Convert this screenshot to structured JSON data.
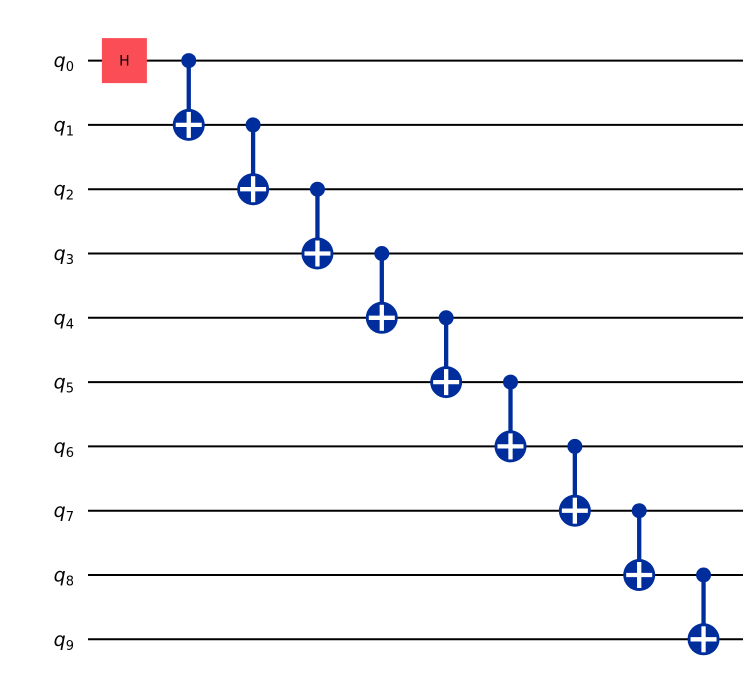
{
  "figure": {
    "kind": "quantum-circuit",
    "background": "#ffffff",
    "num_qubits": 10
  },
  "colors": {
    "wire": "#000000",
    "h_gate_fill": "#FA4D56",
    "h_gate_text": "#000000",
    "cx_gate_fill": "#002D9C",
    "cx_cross": "#ffffff"
  },
  "qubits": [
    {
      "base": "q",
      "sub": "0"
    },
    {
      "base": "q",
      "sub": "1"
    },
    {
      "base": "q",
      "sub": "2"
    },
    {
      "base": "q",
      "sub": "3"
    },
    {
      "base": "q",
      "sub": "4"
    },
    {
      "base": "q",
      "sub": "5"
    },
    {
      "base": "q",
      "sub": "6"
    },
    {
      "base": "q",
      "sub": "7"
    },
    {
      "base": "q",
      "sub": "8"
    },
    {
      "base": "q",
      "sub": "9"
    }
  ],
  "gates": [
    {
      "type": "h",
      "label": "H",
      "qubit": 0,
      "column": 0
    },
    {
      "type": "cx",
      "control": 0,
      "target": 1,
      "column": 1
    },
    {
      "type": "cx",
      "control": 1,
      "target": 2,
      "column": 2
    },
    {
      "type": "cx",
      "control": 2,
      "target": 3,
      "column": 3
    },
    {
      "type": "cx",
      "control": 3,
      "target": 4,
      "column": 4
    },
    {
      "type": "cx",
      "control": 4,
      "target": 5,
      "column": 5
    },
    {
      "type": "cx",
      "control": 5,
      "target": 6,
      "column": 6
    },
    {
      "type": "cx",
      "control": 6,
      "target": 7,
      "column": 7
    },
    {
      "type": "cx",
      "control": 7,
      "target": 8,
      "column": 8
    },
    {
      "type": "cx",
      "control": 8,
      "target": 9,
      "column": 9
    }
  ]
}
